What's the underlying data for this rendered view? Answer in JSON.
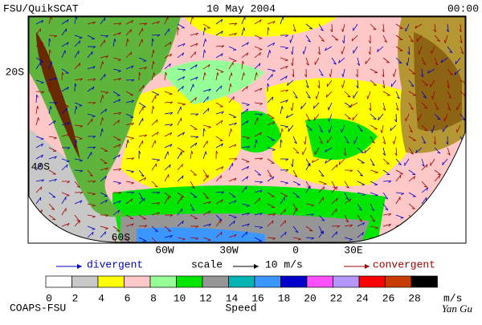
{
  "header": {
    "source": "FSU/QuikSCAT",
    "date": "10 May 2004",
    "time": "00:00"
  },
  "map": {
    "lat_labels": [
      "20S",
      "40S",
      "60S"
    ],
    "lon_labels": [
      "60W",
      "30W",
      "0",
      "30E"
    ]
  },
  "legend": {
    "divergent": "divergent",
    "scale": "scale",
    "scale_value": "10 m/s",
    "convergent": "convergent"
  },
  "colorbar": {
    "ticks": [
      0,
      2,
      4,
      6,
      8,
      10,
      12,
      14,
      16,
      18,
      20,
      22,
      24,
      26,
      28
    ],
    "unit": "m/s",
    "label": "Speed",
    "colors": [
      "#ffffff",
      "#c8c8c8",
      "#ffff00",
      "#ffc8c8",
      "#96ff96",
      "#00e600",
      "#969696",
      "#00b4b4",
      "#3c96ff",
      "#0000c8",
      "#ff50ff",
      "#b496ff",
      "#ff0000",
      "#c83c00",
      "#000000"
    ]
  },
  "footer": {
    "left": "COAPS-FSU",
    "right": "Yan Gu"
  }
}
